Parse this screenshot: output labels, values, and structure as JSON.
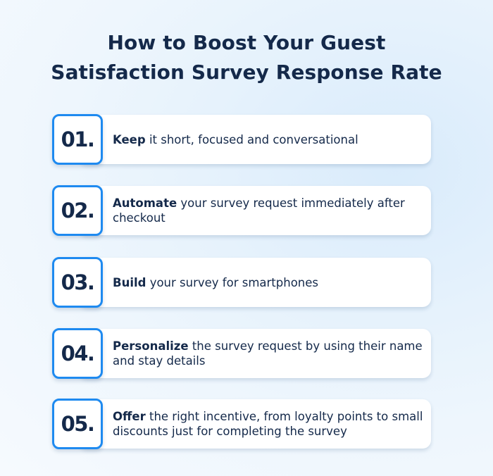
{
  "title": {
    "line1": "How to Boost Your Guest",
    "line2": "Satisfaction Survey Response Rate"
  },
  "steps": [
    {
      "number": "01.",
      "bold": "Keep",
      "rest": " it short, focused and conversational"
    },
    {
      "number": "02.",
      "bold": "Automate",
      "rest": " your survey request immediately after checkout"
    },
    {
      "number": "03.",
      "bold": "Build",
      "rest": " your survey for smartphones"
    },
    {
      "number": "04.",
      "bold": "Personalize",
      "rest": " the survey request by using their name and stay details"
    },
    {
      "number": "05.",
      "bold": "Offer",
      "rest": " the right incentive, from loyalty points to small discounts just for completing the survey"
    }
  ],
  "colors": {
    "accent": "#1e8af0",
    "text": "#14294a",
    "card": "#ffffff"
  }
}
